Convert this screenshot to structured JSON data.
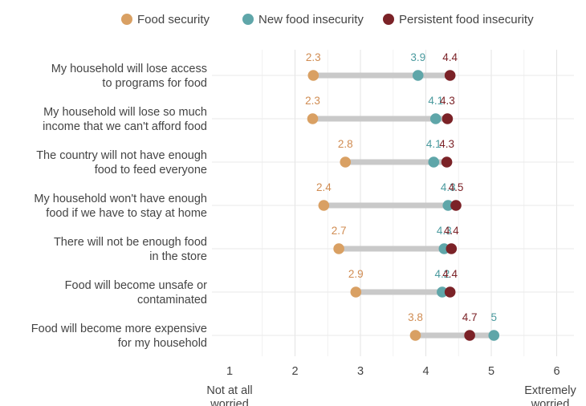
{
  "chart_data": {
    "type": "dumbbell",
    "title": "",
    "xlabel": "",
    "ylabel": "",
    "xlim": [
      1,
      6
    ],
    "xticks": [
      1,
      2,
      3,
      4,
      5,
      6
    ],
    "x_tick_labels": [
      "1",
      "2",
      "3",
      "4",
      "5",
      "6"
    ],
    "x_endpoint_labels": {
      "low": "Not at all worried",
      "high": "Extremely worried"
    },
    "grid": true,
    "legend_position": "top",
    "series": [
      {
        "name": "Food security",
        "color": "#D9A063"
      },
      {
        "name": "New food insecurity",
        "color": "#5FA6A9"
      },
      {
        "name": "Persistent food insecurity",
        "color": "#7B2227"
      }
    ],
    "label_colors": [
      "#D08C52",
      "#4A9A9E",
      "#7B2227"
    ],
    "categories": [
      {
        "label": "My household will lose access to programs for food",
        "label_lines": [
          "My household will lose access",
          "to programs for food"
        ],
        "values": [
          2.28,
          3.88,
          4.37
        ],
        "labels": [
          "2.3",
          "3.9",
          "4.4"
        ]
      },
      {
        "label": "My household will lose so much income that we can't afford food",
        "label_lines": [
          "My household will lose so much",
          "income that we can't afford food"
        ],
        "values": [
          2.27,
          4.15,
          4.33
        ],
        "labels": [
          "2.3",
          "4.1",
          "4.3"
        ]
      },
      {
        "label": "The country will not have enough food to feed everyone",
        "label_lines": [
          "The country will not have enough",
          "food to feed everyone"
        ],
        "values": [
          2.77,
          4.12,
          4.32
        ],
        "labels": [
          "2.8",
          "4.1",
          "4.3"
        ]
      },
      {
        "label": "My household won't have enough food if we have to stay at home",
        "label_lines": [
          "My household won't have enough",
          "food if we have to stay at home"
        ],
        "values": [
          2.44,
          4.34,
          4.46
        ],
        "labels": [
          "2.4",
          "4.3",
          "4.5"
        ]
      },
      {
        "label": "There will not be enough food in the store",
        "label_lines": [
          "There will not be enough food",
          "in the store"
        ],
        "values": [
          2.67,
          4.28,
          4.39
        ],
        "labels": [
          "2.7",
          "4.3",
          "4.4"
        ]
      },
      {
        "label": "Food will become unsafe or contaminated",
        "label_lines": [
          "Food will become unsafe or",
          "contaminated"
        ],
        "values": [
          2.93,
          4.25,
          4.37
        ],
        "labels": [
          "2.9",
          "4.2",
          "4.4"
        ]
      },
      {
        "label": "Food will become more expensive for my household",
        "label_lines": [
          "Food will become more expensive",
          "for my household"
        ],
        "values": [
          3.84,
          5.04,
          4.67
        ],
        "labels": [
          "3.8",
          "5",
          "4.7"
        ]
      }
    ]
  }
}
